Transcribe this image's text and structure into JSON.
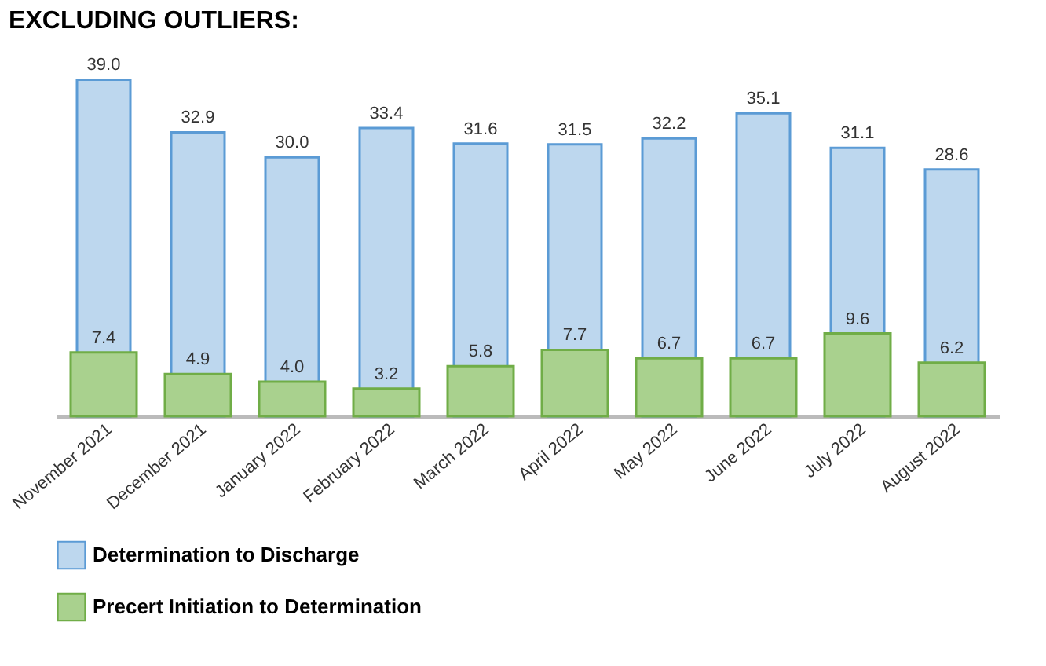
{
  "chart_data": {
    "type": "bar",
    "title": "EXCLUDING OUTLIERS:",
    "categories": [
      "November 2021",
      "December 2021",
      "January 2022",
      "February 2022",
      "March 2022",
      "April 2022",
      "May 2022",
      "June 2022",
      "July 2022",
      "August 2022"
    ],
    "series": [
      {
        "name": "Determination to Discharge",
        "color": "#bdd7ee",
        "values": [
          39.0,
          32.9,
          30.0,
          33.4,
          31.6,
          31.5,
          32.2,
          35.1,
          31.1,
          28.6
        ],
        "value_labels": [
          "39.0",
          "32.9",
          "30.0",
          "33.4",
          "31.6",
          "31.5",
          "32.2",
          "35.1",
          "31.1",
          "28.6"
        ]
      },
      {
        "name": "Precert Initiation to Determination",
        "color": "#a9d18e",
        "values": [
          7.4,
          4.9,
          4.0,
          3.2,
          5.8,
          7.7,
          6.7,
          6.7,
          9.6,
          6.2
        ],
        "value_labels": [
          "7.4",
          "4.9",
          "4.0",
          "3.2",
          "5.8",
          "7.7",
          "6.7",
          "6.7",
          "9.6",
          "6.2"
        ]
      }
    ],
    "legend": "bottom",
    "grid": false
  }
}
